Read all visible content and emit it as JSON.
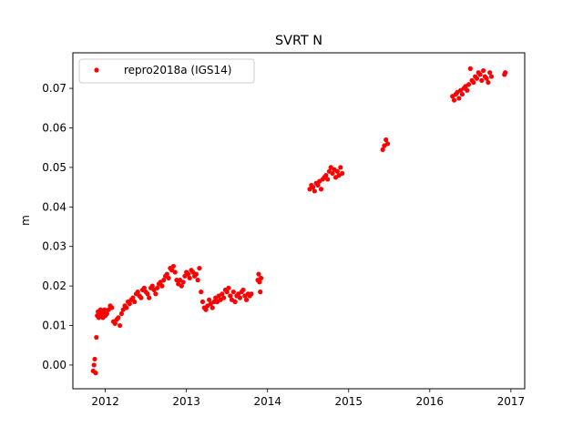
{
  "chart_data": {
    "type": "scatter",
    "title": "SVRT N",
    "xlabel": "",
    "ylabel": "m",
    "xlim": [
      2011.6,
      2017.17
    ],
    "ylim": [
      -0.006,
      0.079
    ],
    "x_ticks": [
      2012,
      2013,
      2014,
      2015,
      2016,
      2017
    ],
    "y_ticks": [
      0.0,
      0.01,
      0.02,
      0.03,
      0.04,
      0.05,
      0.06,
      0.07
    ],
    "y_tick_labels": [
      "0.00",
      "0.01",
      "0.02",
      "0.03",
      "0.04",
      "0.05",
      "0.06",
      "0.07"
    ],
    "grid": false,
    "legend_position": "top-left",
    "series": [
      {
        "name": "repro2018a (IGS14)",
        "color": "#ff0000",
        "marker": "circle",
        "x": [
          2011.85,
          2011.86,
          2011.87,
          2011.88,
          2011.89,
          2011.9,
          2011.91,
          2011.92,
          2011.93,
          2011.94,
          2011.95,
          2011.96,
          2011.97,
          2011.98,
          2011.99,
          2012.0,
          2012.02,
          2012.04,
          2012.06,
          2012.08,
          2012.1,
          2012.12,
          2012.14,
          2012.16,
          2012.18,
          2012.2,
          2012.22,
          2012.24,
          2012.26,
          2012.28,
          2012.3,
          2012.32,
          2012.34,
          2012.36,
          2012.38,
          2012.4,
          2012.42,
          2012.44,
          2012.46,
          2012.48,
          2012.5,
          2012.52,
          2012.54,
          2012.56,
          2012.58,
          2012.6,
          2012.62,
          2012.64,
          2012.66,
          2012.68,
          2012.7,
          2012.72,
          2012.74,
          2012.76,
          2012.78,
          2012.8,
          2012.82,
          2012.84,
          2012.86,
          2012.88,
          2012.9,
          2012.92,
          2012.94,
          2012.96,
          2012.98,
          2013.0,
          2013.02,
          2013.04,
          2013.06,
          2013.08,
          2013.1,
          2013.12,
          2013.14,
          2013.16,
          2013.18,
          2013.2,
          2013.22,
          2013.24,
          2013.26,
          2013.28,
          2013.3,
          2013.32,
          2013.34,
          2013.36,
          2013.38,
          2013.4,
          2013.42,
          2013.44,
          2013.46,
          2013.48,
          2013.5,
          2013.52,
          2013.54,
          2013.56,
          2013.58,
          2013.6,
          2013.62,
          2013.64,
          2013.66,
          2013.68,
          2013.7,
          2013.72,
          2013.74,
          2013.76,
          2013.78,
          2013.8,
          2013.88,
          2013.89,
          2013.9,
          2013.91,
          2013.92,
          2014.52,
          2014.54,
          2014.56,
          2014.58,
          2014.6,
          2014.62,
          2014.64,
          2014.66,
          2014.68,
          2014.7,
          2014.72,
          2014.74,
          2014.76,
          2014.78,
          2014.8,
          2014.82,
          2014.84,
          2014.86,
          2014.88,
          2014.9,
          2014.92,
          2015.42,
          2015.44,
          2015.46,
          2015.48,
          2016.28,
          2016.3,
          2016.32,
          2016.34,
          2016.36,
          2016.38,
          2016.4,
          2016.42,
          2016.44,
          2016.46,
          2016.48,
          2016.5,
          2016.52,
          2016.54,
          2016.56,
          2016.58,
          2016.6,
          2016.62,
          2016.64,
          2016.66,
          2016.68,
          2016.7,
          2016.72,
          2016.74,
          2016.76,
          2016.92,
          2016.93
        ],
        "y": [
          -0.0015,
          0.0,
          0.0015,
          -0.002,
          0.007,
          0.0125,
          0.0135,
          0.012,
          0.013,
          0.014,
          0.0125,
          0.013,
          0.012,
          0.0135,
          0.014,
          0.0125,
          0.013,
          0.014,
          0.015,
          0.0145,
          0.011,
          0.0105,
          0.0115,
          0.012,
          0.01,
          0.013,
          0.014,
          0.015,
          0.0145,
          0.016,
          0.0155,
          0.0165,
          0.017,
          0.016,
          0.018,
          0.0185,
          0.0175,
          0.017,
          0.019,
          0.0195,
          0.0185,
          0.018,
          0.017,
          0.0195,
          0.02,
          0.019,
          0.018,
          0.0195,
          0.0205,
          0.021,
          0.02,
          0.0215,
          0.0225,
          0.023,
          0.022,
          0.0245,
          0.024,
          0.025,
          0.0235,
          0.0215,
          0.0205,
          0.0215,
          0.02,
          0.021,
          0.0225,
          0.0235,
          0.023,
          0.022,
          0.024,
          0.0235,
          0.0225,
          0.023,
          0.0215,
          0.0245,
          0.0185,
          0.016,
          0.0145,
          0.014,
          0.015,
          0.0165,
          0.0155,
          0.0145,
          0.016,
          0.017,
          0.016,
          0.0175,
          0.0165,
          0.018,
          0.017,
          0.019,
          0.0185,
          0.0195,
          0.0175,
          0.0165,
          0.0185,
          0.016,
          0.0175,
          0.018,
          0.017,
          0.0185,
          0.019,
          0.0175,
          0.0165,
          0.018,
          0.0175,
          0.018,
          0.0215,
          0.023,
          0.021,
          0.0185,
          0.022,
          0.0445,
          0.0455,
          0.045,
          0.044,
          0.046,
          0.0455,
          0.0465,
          0.0445,
          0.047,
          0.0475,
          0.048,
          0.047,
          0.049,
          0.05,
          0.0485,
          0.0495,
          0.0475,
          0.049,
          0.048,
          0.05,
          0.0485,
          0.0545,
          0.0555,
          0.057,
          0.056,
          0.068,
          0.067,
          0.0685,
          0.069,
          0.0675,
          0.0695,
          0.0685,
          0.07,
          0.0705,
          0.0695,
          0.071,
          0.075,
          0.072,
          0.0715,
          0.073,
          0.0725,
          0.074,
          0.0735,
          0.072,
          0.0745,
          0.073,
          0.0725,
          0.0715,
          0.074,
          0.073,
          0.0735,
          0.074
        ]
      }
    ]
  }
}
